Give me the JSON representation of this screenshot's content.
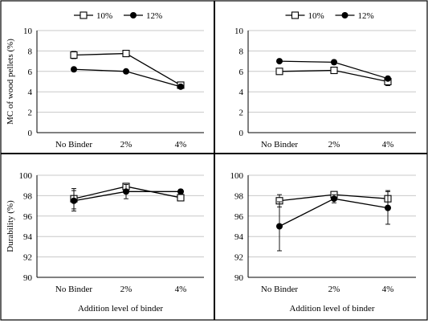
{
  "chart_data": [
    {
      "type": "line",
      "categories": [
        "No Binder",
        "2%",
        "4%"
      ],
      "ylabel": "MC of wood pellets  (%)",
      "xlabel": "",
      "ylim": [
        0,
        10
      ],
      "yticks": [
        "0",
        "2",
        "4",
        "6",
        "8",
        "10"
      ],
      "legend": "top-center",
      "series": [
        {
          "name": "10%",
          "marker": "open-square",
          "values": [
            7.6,
            7.75,
            4.65
          ],
          "err": [
            0.35,
            0.1,
            0.15
          ]
        },
        {
          "name": "12%",
          "marker": "filled-circle",
          "values": [
            6.2,
            6.0,
            4.5
          ],
          "err": [
            0.1,
            0.1,
            0.1
          ]
        }
      ]
    },
    {
      "type": "line",
      "categories": [
        "No Binder",
        "2%",
        "4%"
      ],
      "ylabel": "",
      "xlabel": "",
      "ylim": [
        0,
        10
      ],
      "yticks": [
        "0",
        "2",
        "4",
        "6",
        "8",
        "10"
      ],
      "legend": "top-center",
      "series": [
        {
          "name": "10%",
          "marker": "open-square",
          "values": [
            6.0,
            6.1,
            5.0
          ],
          "err": [
            0.1,
            0.1,
            0.4
          ]
        },
        {
          "name": "12%",
          "marker": "filled-circle",
          "values": [
            7.0,
            6.9,
            5.3
          ],
          "err": [
            0.1,
            0.2,
            0.15
          ]
        }
      ]
    },
    {
      "type": "line",
      "categories": [
        "No Binder",
        "2%",
        "4%"
      ],
      "ylabel": "Durability  (%)",
      "xlabel": "Addition  level  of binder",
      "ylim": [
        90,
        100
      ],
      "yticks": [
        "90",
        "92",
        "94",
        "96",
        "98",
        "100"
      ],
      "legend": "none",
      "series": [
        {
          "name": "10%",
          "marker": "open-square",
          "values": [
            97.7,
            98.9,
            97.8
          ],
          "err": [
            1.0,
            0.3,
            0.1
          ]
        },
        {
          "name": "12%",
          "marker": "filled-circle",
          "values": [
            97.5,
            98.4,
            98.4
          ],
          "err": [
            1.0,
            0.7,
            0.2
          ]
        }
      ]
    },
    {
      "type": "line",
      "categories": [
        "No Binder",
        "2%",
        "4%"
      ],
      "ylabel": "",
      "xlabel": "Addition  level  of binder",
      "ylim": [
        90,
        100
      ],
      "yticks": [
        "90",
        "92",
        "94",
        "96",
        "98",
        "100"
      ],
      "legend": "none",
      "series": [
        {
          "name": "10%",
          "marker": "open-square",
          "values": [
            97.5,
            98.1,
            97.7
          ],
          "err": [
            0.6,
            0.1,
            0.8
          ]
        },
        {
          "name": "12%",
          "marker": "filled-circle",
          "values": [
            95.0,
            97.7,
            96.8
          ],
          "err": [
            2.4,
            0.4,
            1.6
          ]
        }
      ]
    }
  ]
}
